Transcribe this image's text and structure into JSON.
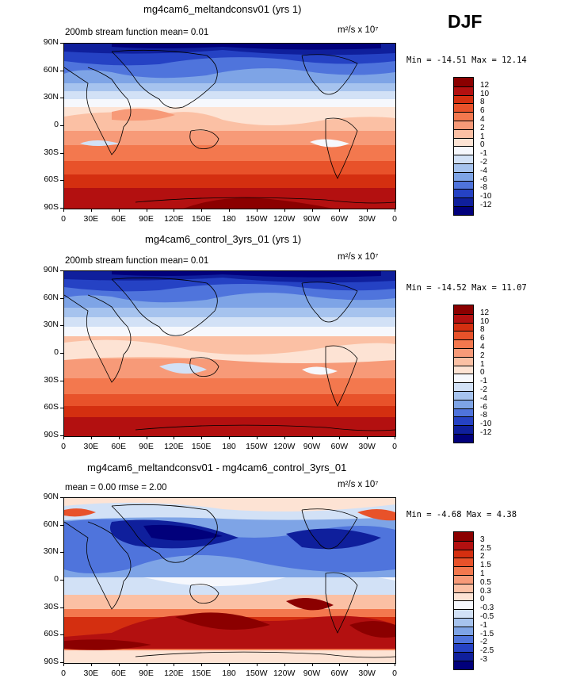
{
  "season_label": "DJF",
  "units": "m²/s x 10⁷",
  "lat_ticks": [
    "90N",
    "60N",
    "30N",
    "0",
    "30S",
    "60S",
    "90S"
  ],
  "lon_ticks": [
    "0",
    "30E",
    "60E",
    "90E",
    "120E",
    "150E",
    "180",
    "150W",
    "120W",
    "90W",
    "60W",
    "30W",
    "0"
  ],
  "panels": [
    {
      "title": "mg4cam6_meltandconsv01 (yrs 1)",
      "left_note": "200mb stream function   mean=    0.01",
      "range_text": "Min = -14.51  Max =  12.14",
      "levels": [
        "12",
        "10",
        "8",
        "6",
        "4",
        "2",
        "1",
        "0",
        "-1",
        "-2",
        "-4",
        "-6",
        "-8",
        "-10",
        "-12"
      ],
      "colors": [
        "#8b0000",
        "#b31010",
        "#d42f10",
        "#e8522a",
        "#f3784e",
        "#f79a78",
        "#fbc0a4",
        "#fde3d4",
        "#f6f8fd",
        "#d2e1f6",
        "#a6c3ee",
        "#7ea4e6",
        "#4f74dc",
        "#2542c4",
        "#0f1f9c",
        "#01007b"
      ]
    },
    {
      "title": "mg4cam6_control_3yrs_01 (yrs 1)",
      "left_note": "200mb stream function   mean=    0.01",
      "range_text": "Min = -14.52  Max =  11.07",
      "levels": [
        "12",
        "10",
        "8",
        "6",
        "4",
        "2",
        "1",
        "0",
        "-1",
        "-2",
        "-4",
        "-6",
        "-8",
        "-10",
        "-12"
      ],
      "colors": [
        "#8b0000",
        "#b31010",
        "#d42f10",
        "#e8522a",
        "#f3784e",
        "#f79a78",
        "#fbc0a4",
        "#fde3d4",
        "#f6f8fd",
        "#d2e1f6",
        "#a6c3ee",
        "#7ea4e6",
        "#4f74dc",
        "#2542c4",
        "#0f1f9c",
        "#01007b"
      ]
    },
    {
      "title": "mg4cam6_meltandconsv01 - mg4cam6_control_3yrs_01",
      "left_note": "mean =    0.00        rmse =    2.00",
      "range_text": "Min =  -4.68  Max =   4.38",
      "levels": [
        "3",
        "2.5",
        "2",
        "1.5",
        "1",
        "0.5",
        "0.3",
        "0",
        "-0.3",
        "-0.5",
        "-1",
        "-1.5",
        "-2",
        "-2.5",
        "-3"
      ],
      "colors": [
        "#8b0000",
        "#b31010",
        "#d42f10",
        "#e8522a",
        "#f3784e",
        "#f79a78",
        "#fbc0a4",
        "#fde3d4",
        "#f6f8fd",
        "#d2e1f6",
        "#a6c3ee",
        "#7ea4e6",
        "#4f74dc",
        "#2542c4",
        "#0f1f9c",
        "#01007b"
      ]
    }
  ]
}
